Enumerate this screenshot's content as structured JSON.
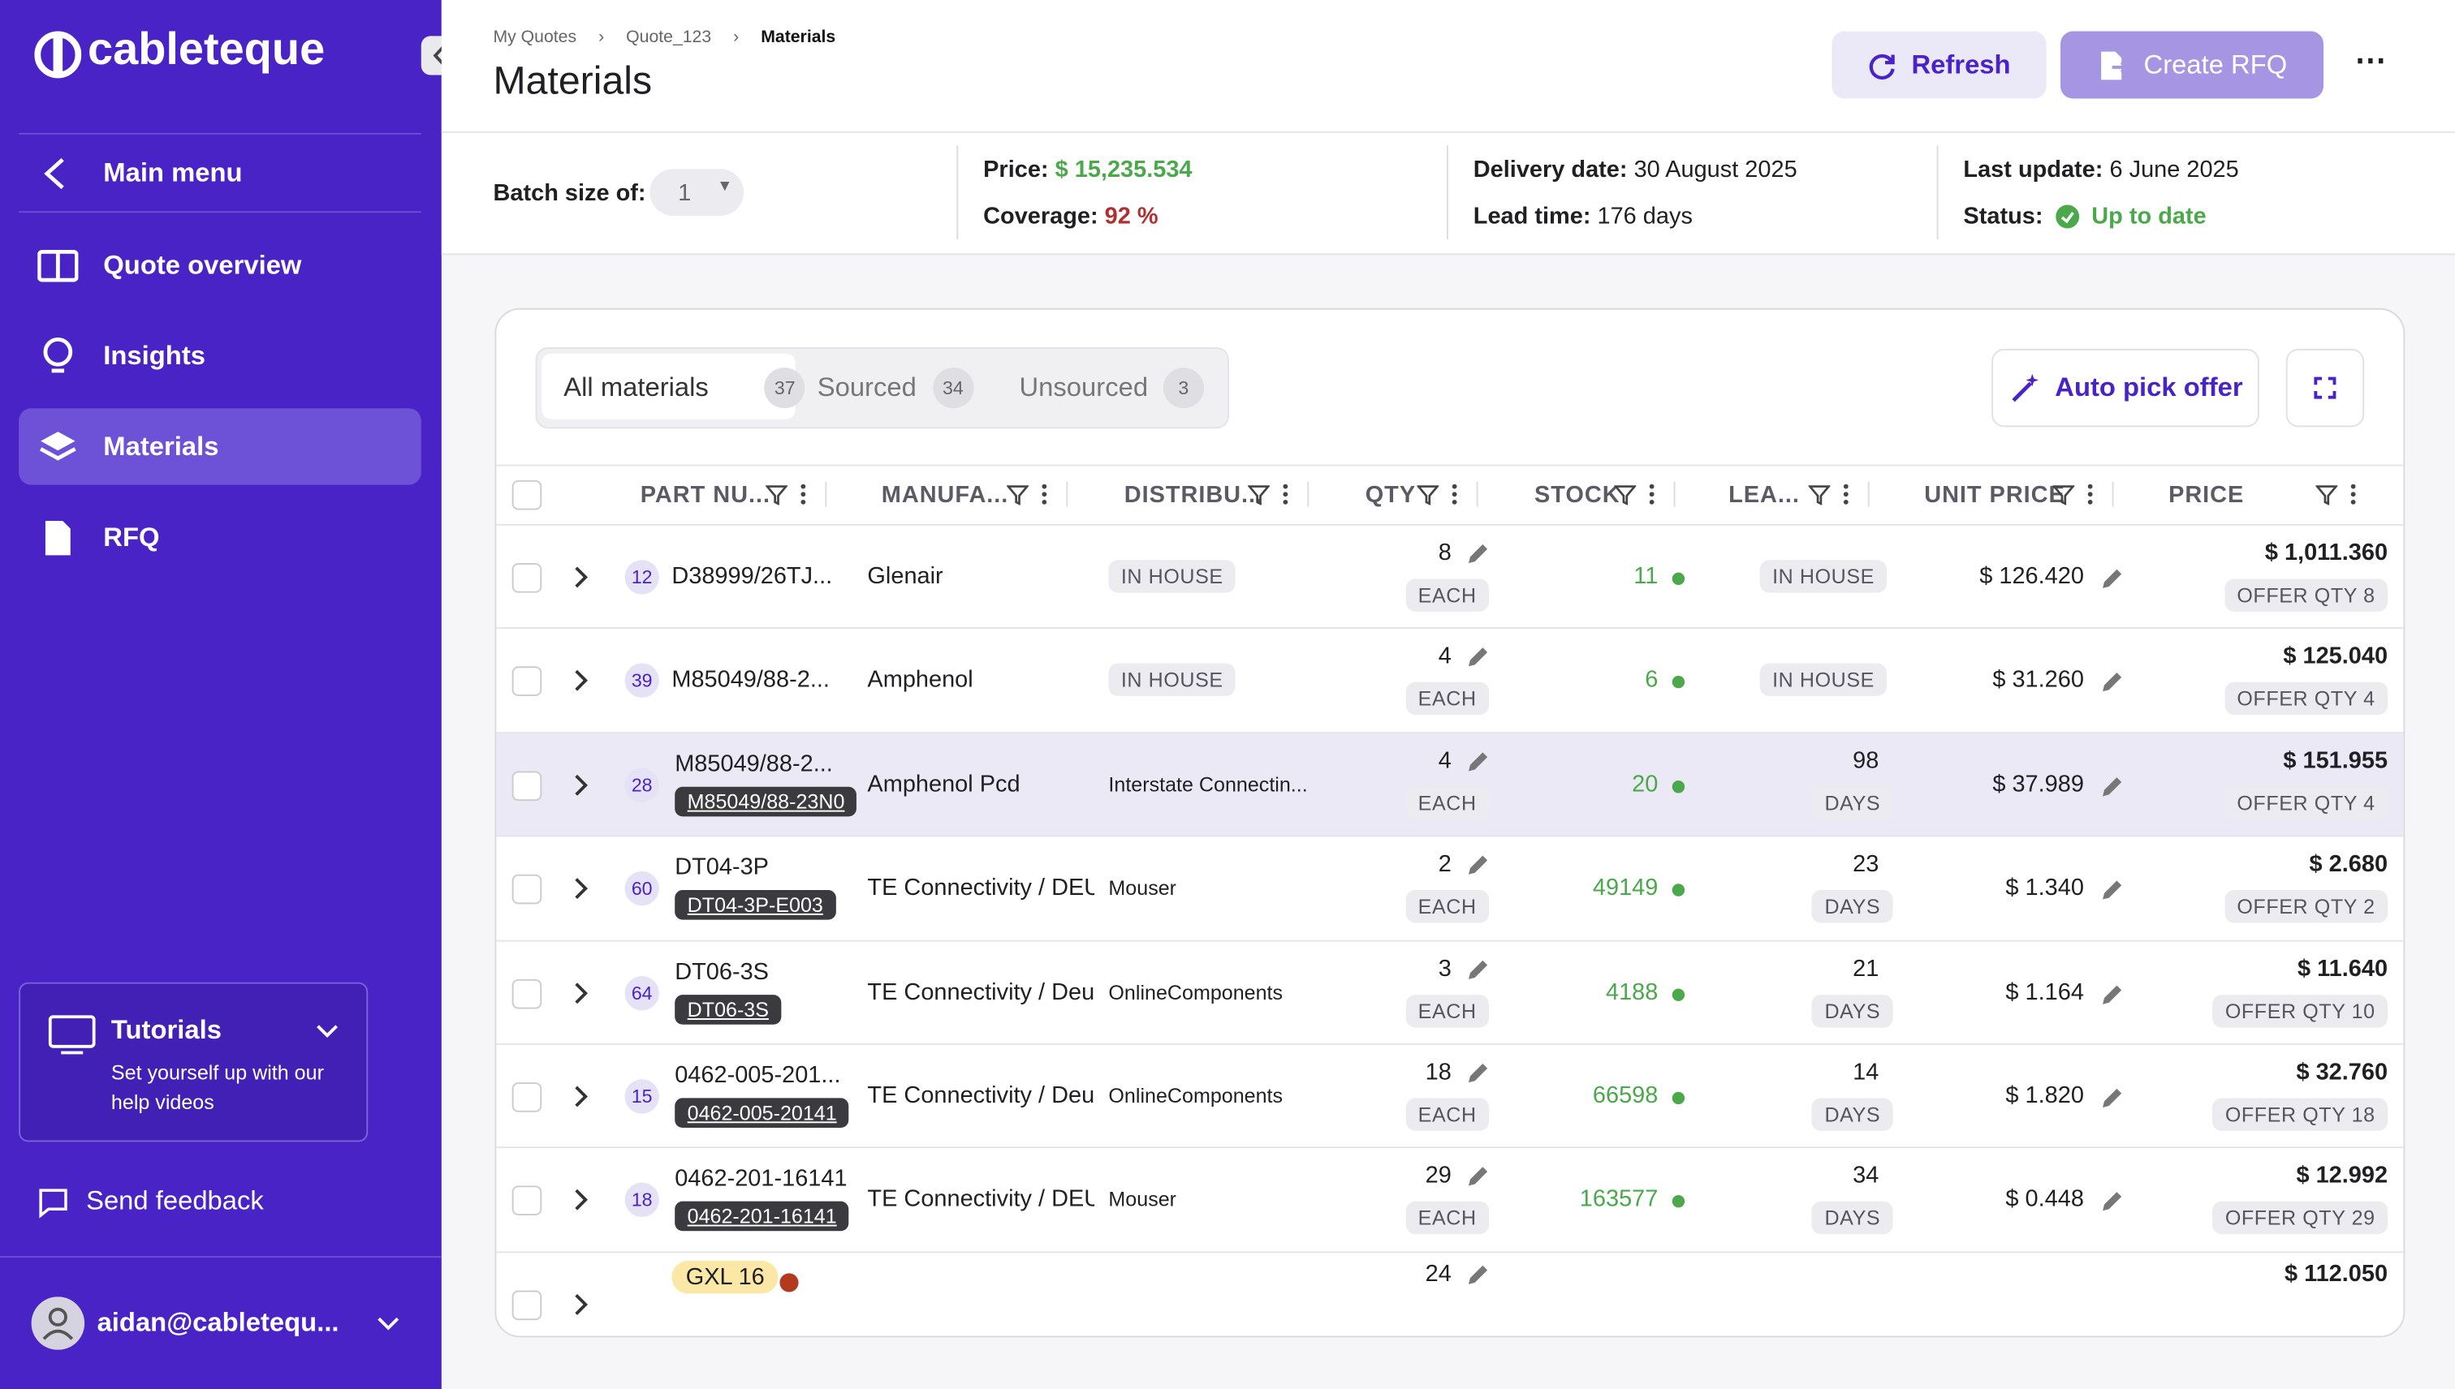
{
  "sidebar": {
    "logo": "cableteque",
    "nav": [
      "Main menu",
      "Quote overview",
      "Insights",
      "Materials",
      "RFQ"
    ],
    "tutorials": {
      "title": "Tutorials",
      "text": "Set yourself up with our help videos"
    },
    "feedback": "Send feedback",
    "user": "aidan@cabletequ..."
  },
  "header": {
    "breadcrumbs": [
      "My Quotes",
      "Quote_123",
      "Materials"
    ],
    "title": "Materials",
    "refresh": "Refresh",
    "create_rfq": "Create RFQ"
  },
  "summary": {
    "batch_label": "Batch size of:",
    "batch_value": "1",
    "price_label": "Price:",
    "price": "$ 15,235.534",
    "coverage_label": "Coverage:",
    "coverage": "92 %",
    "delivery_label": "Delivery date:",
    "delivery": "30 August 2025",
    "lead_label": "Lead time:",
    "lead": "176 days",
    "update_label": "Last update:",
    "update": "6 June 2025",
    "status_label": "Status:",
    "status": "Up to date"
  },
  "tabs": [
    {
      "label": "All materials",
      "count": 37
    },
    {
      "label": "Sourced",
      "count": 34
    },
    {
      "label": "Unsourced",
      "count": 3
    }
  ],
  "auto_pick": "Auto pick offer",
  "table": {
    "columns": [
      "PART NU...",
      "MANUFA...",
      "DISTRIBU...",
      "QTY",
      "STOCK",
      "LEA...",
      "UNIT PRICE",
      "PRICE"
    ],
    "rows": [
      {
        "badge": "12",
        "part": "D38999/26TJ...",
        "manufacturer": "Glenair",
        "distributor": "IN HOUSE",
        "qty": 8,
        "qty_unit": "EACH",
        "stock": 11,
        "lead": "IN HOUSE",
        "unit_price": "$ 126.420",
        "price": "$ 1,011.360",
        "offer": "OFFER QTY 8"
      },
      {
        "badge": "39",
        "part": "M85049/88-2...",
        "manufacturer": "Amphenol",
        "distributor": "IN HOUSE",
        "qty": 4,
        "qty_unit": "EACH",
        "stock": 6,
        "lead": "IN HOUSE",
        "unit_price": "$ 31.260",
        "price": "$ 125.040",
        "offer": "OFFER QTY 4"
      },
      {
        "badge": "28",
        "part": "M85049/88-2...",
        "sub_part": "M85049/88-23N0",
        "manufacturer": "Amphenol Pcd",
        "distributor": "Interstate Connectin...",
        "qty": 4,
        "qty_unit": "EACH",
        "stock": 20,
        "lead": "98",
        "lead_unit": "DAYS",
        "unit_price": "$ 37.989",
        "price": "$ 151.955",
        "offer": "OFFER QTY 4"
      },
      {
        "badge": "60",
        "part": "DT04-3P",
        "sub_part": "DT04-3P-E003",
        "manufacturer": "TE Connectivity / DEU",
        "distributor": "Mouser",
        "qty": 2,
        "qty_unit": "EACH",
        "stock": 49149,
        "lead": "23",
        "lead_unit": "DAYS",
        "unit_price": "$ 1.340",
        "price": "$ 2.680",
        "offer": "OFFER QTY 2"
      },
      {
        "badge": "64",
        "part": "DT06-3S",
        "sub_part": "DT06-3S",
        "manufacturer": "TE Connectivity / Deu",
        "distributor": "OnlineComponents",
        "qty": 3,
        "qty_unit": "EACH",
        "stock": 4188,
        "lead": "21",
        "lead_unit": "DAYS",
        "unit_price": "$ 1.164",
        "price": "$ 11.640",
        "offer": "OFFER QTY 10"
      },
      {
        "badge": "15",
        "part": "0462-005-201...",
        "sub_part": "0462-005-20141",
        "manufacturer": "TE Connectivity / Deu",
        "distributor": "OnlineComponents",
        "qty": 18,
        "qty_unit": "EACH",
        "stock": 66598,
        "lead": "14",
        "lead_unit": "DAYS",
        "unit_price": "$ 1.820",
        "price": "$ 32.760",
        "offer": "OFFER QTY 18"
      },
      {
        "badge": "18",
        "part": "0462-201-16141",
        "sub_part": "0462-201-16141",
        "manufacturer": "TE Connectivity / DEU",
        "distributor": "Mouser",
        "qty": 29,
        "qty_unit": "EACH",
        "stock": 163577,
        "lead": "34",
        "lead_unit": "DAYS",
        "unit_price": "$ 0.448",
        "price": "$ 12.992",
        "offer": "OFFER QTY 29"
      },
      {
        "tag": "GXL 16",
        "qty": 24,
        "price": "$ 112.050"
      }
    ]
  }
}
